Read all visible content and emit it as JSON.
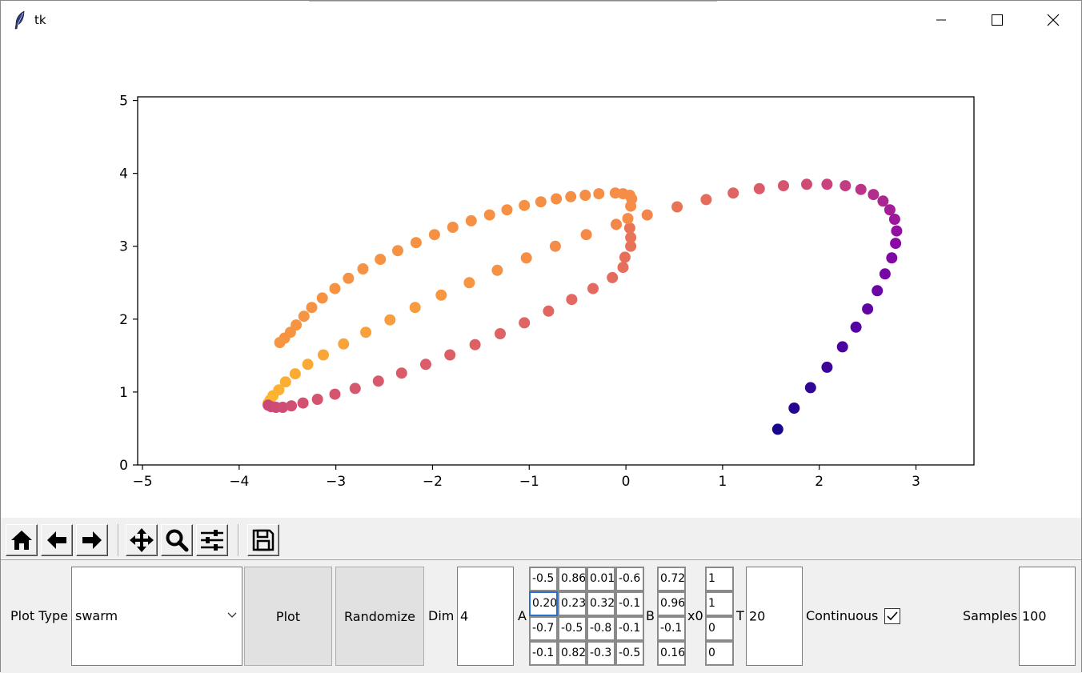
{
  "window": {
    "title": "tk",
    "icon": "feather-icon"
  },
  "toolbar": {
    "buttons": [
      {
        "name": "home-button",
        "icon": "home-icon"
      },
      {
        "name": "back-button",
        "icon": "arrow-left-icon"
      },
      {
        "name": "forward-button",
        "icon": "arrow-right-icon"
      },
      {
        "name": "pan-button",
        "icon": "move-icon"
      },
      {
        "name": "zoom-button",
        "icon": "magnifier-icon"
      },
      {
        "name": "configure-button",
        "icon": "sliders-icon"
      },
      {
        "name": "save-button",
        "icon": "floppy-disk-icon"
      }
    ]
  },
  "controls": {
    "plot_type_label": "Plot Type",
    "plot_type_value": "swarm",
    "plot_button": "Plot",
    "randomize_button": "Randomize",
    "dim_label": "Dim",
    "dim_value": "4",
    "a_label": "A",
    "a_matrix": [
      [
        "-0.5",
        "0.86",
        "0.01",
        "-0.6"
      ],
      [
        "0.20",
        "0.23",
        "0.32",
        "-0.1"
      ],
      [
        "-0.7",
        "-0.5",
        "-0.8",
        "-0.1"
      ],
      [
        "-0.1",
        "0.82",
        "-0.3",
        "-0.5"
      ]
    ],
    "b_label": "B",
    "b_vector": [
      "0.72",
      "0.96",
      "-0.1",
      "0.16"
    ],
    "x0_label": "x0",
    "x0_vector": [
      "1",
      "1",
      "0",
      "0"
    ],
    "t_label": "T",
    "t_value": "20",
    "continuous_label": "Continuous",
    "continuous_checked": true,
    "samples_label": "Samples",
    "samples_value": "100"
  },
  "chart_data": {
    "type": "scatter",
    "colormap": "plasma",
    "xlim": [
      -5.05,
      3.6
    ],
    "ylim": [
      0,
      5.05
    ],
    "xticks": [
      -5,
      -4,
      -3,
      -2,
      -1,
      0,
      1,
      2,
      3
    ],
    "xtick_labels": [
      "−5",
      "−4",
      "−3",
      "−2",
      "−1",
      "0",
      "1",
      "2",
      "3"
    ],
    "yticks": [
      0,
      1,
      2,
      3,
      4,
      5
    ],
    "ytick_labels": [
      "0",
      "1",
      "2",
      "3",
      "4",
      "5"
    ],
    "points": [
      [
        1.57,
        0.49
      ],
      [
        1.74,
        0.78
      ],
      [
        1.91,
        1.06
      ],
      [
        2.08,
        1.34
      ],
      [
        2.24,
        1.62
      ],
      [
        2.38,
        1.89
      ],
      [
        2.5,
        2.14
      ],
      [
        2.6,
        2.39
      ],
      [
        2.68,
        2.62
      ],
      [
        2.75,
        2.84
      ],
      [
        2.79,
        3.04
      ],
      [
        2.8,
        3.21
      ],
      [
        2.78,
        3.37
      ],
      [
        2.73,
        3.5
      ],
      [
        2.66,
        3.62
      ],
      [
        2.56,
        3.71
      ],
      [
        2.43,
        3.78
      ],
      [
        2.27,
        3.83
      ],
      [
        2.08,
        3.85
      ],
      [
        1.87,
        3.85
      ],
      [
        1.63,
        3.83
      ],
      [
        1.38,
        3.79
      ],
      [
        1.11,
        3.73
      ],
      [
        0.83,
        3.64
      ],
      [
        0.53,
        3.54
      ],
      [
        0.22,
        3.43
      ],
      [
        -0.1,
        3.3
      ],
      [
        -0.41,
        3.16
      ],
      [
        -0.73,
        3.0
      ],
      [
        -1.03,
        2.84
      ],
      [
        -1.33,
        2.67
      ],
      [
        -1.62,
        2.5
      ],
      [
        -1.91,
        2.33
      ],
      [
        -2.18,
        2.16
      ],
      [
        -2.44,
        1.99
      ],
      [
        -2.69,
        1.82
      ],
      [
        -2.92,
        1.66
      ],
      [
        -3.13,
        1.51
      ],
      [
        -3.29,
        1.38
      ],
      [
        -3.42,
        1.25
      ],
      [
        -3.52,
        1.14
      ],
      [
        -3.59,
        1.03
      ],
      [
        -3.65,
        0.95
      ],
      [
        -3.68,
        0.89
      ],
      [
        -3.7,
        0.85
      ],
      [
        -3.7,
        0.82
      ],
      [
        -3.67,
        0.8
      ],
      [
        -3.62,
        0.79
      ],
      [
        -3.55,
        0.79
      ],
      [
        -3.46,
        0.81
      ],
      [
        -3.34,
        0.85
      ],
      [
        -3.19,
        0.9
      ],
      [
        -3.01,
        0.97
      ],
      [
        -2.8,
        1.05
      ],
      [
        -2.56,
        1.15
      ],
      [
        -2.32,
        1.26
      ],
      [
        -2.07,
        1.38
      ],
      [
        -1.82,
        1.51
      ],
      [
        -1.56,
        1.65
      ],
      [
        -1.3,
        1.8
      ],
      [
        -1.05,
        1.95
      ],
      [
        -0.8,
        2.11
      ],
      [
        -0.56,
        2.27
      ],
      [
        -0.34,
        2.42
      ],
      [
        -0.14,
        2.57
      ],
      [
        -0.03,
        2.71
      ],
      [
        -0.01,
        2.85
      ],
      [
        0.05,
        3.0
      ],
      [
        0.05,
        3.12
      ],
      [
        0.04,
        3.25
      ],
      [
        0.02,
        3.38
      ],
      [
        0.05,
        3.55
      ],
      [
        0.06,
        3.65
      ],
      [
        0.04,
        3.7
      ],
      [
        -0.03,
        3.72
      ],
      [
        -0.11,
        3.73
      ],
      [
        -0.28,
        3.72
      ],
      [
        -0.42,
        3.7
      ],
      [
        -0.57,
        3.68
      ],
      [
        -0.72,
        3.65
      ],
      [
        -0.88,
        3.61
      ],
      [
        -1.05,
        3.56
      ],
      [
        -1.23,
        3.5
      ],
      [
        -1.41,
        3.43
      ],
      [
        -1.6,
        3.35
      ],
      [
        -1.79,
        3.26
      ],
      [
        -1.98,
        3.16
      ],
      [
        -2.17,
        3.05
      ],
      [
        -2.36,
        2.94
      ],
      [
        -2.54,
        2.82
      ],
      [
        -2.72,
        2.69
      ],
      [
        -2.87,
        2.56
      ],
      [
        -3.01,
        2.42
      ],
      [
        -3.14,
        2.29
      ],
      [
        -3.25,
        2.16
      ],
      [
        -3.33,
        2.04
      ],
      [
        -3.41,
        1.92
      ],
      [
        -3.47,
        1.82
      ],
      [
        -3.53,
        1.74
      ],
      [
        -3.58,
        1.68
      ]
    ]
  }
}
